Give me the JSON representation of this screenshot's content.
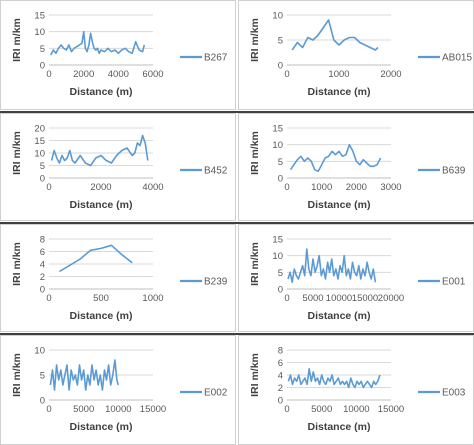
{
  "chart_data": [
    {
      "type": "line",
      "legend": "B267",
      "xlabel": "Distance (m)",
      "ylabel": "IRI m/km",
      "xlim": [
        0,
        6000
      ],
      "ylim": [
        0,
        15
      ],
      "xticks": [
        0,
        2000,
        4000,
        6000
      ],
      "yticks": [
        0,
        5,
        10,
        15
      ],
      "grid": true,
      "legend_position": "right",
      "series": [
        {
          "name": "B267",
          "x": [
            100,
            250,
            400,
            550,
            700,
            850,
            1000,
            1150,
            1300,
            1450,
            1600,
            1750,
            1900,
            2000,
            2100,
            2200,
            2300,
            2400,
            2500,
            2600,
            2700,
            2800,
            2900,
            3000,
            3200,
            3400,
            3600,
            3800,
            4000,
            4200,
            4400,
            4600,
            4800,
            5000,
            5200,
            5400,
            5500
          ],
          "y": [
            3,
            4.5,
            3.5,
            5,
            6,
            5,
            4.5,
            6,
            4,
            5,
            5.5,
            6,
            6.5,
            10,
            5,
            4,
            6,
            9.5,
            7,
            5,
            4.5,
            5,
            3.5,
            4.5,
            4,
            5,
            4,
            4.5,
            3.5,
            4.5,
            5,
            4,
            3.5,
            7,
            4.5,
            4,
            6
          ]
        }
      ]
    },
    {
      "type": "line",
      "legend": "AB015",
      "xlabel": "Distance (m)",
      "ylabel": "IRI m/km",
      "xlim": [
        0,
        2000
      ],
      "ylim": [
        0,
        10
      ],
      "xticks": [
        0,
        1000,
        2000
      ],
      "yticks": [
        0,
        5,
        10
      ],
      "grid": true,
      "legend_position": "right",
      "series": [
        {
          "name": "AB015",
          "x": [
            100,
            200,
            300,
            400,
            500,
            600,
            700,
            800,
            900,
            1000,
            1100,
            1200,
            1300,
            1400,
            1500,
            1600,
            1700,
            1750
          ],
          "y": [
            3,
            4.5,
            3.5,
            5.5,
            5,
            6,
            7.5,
            9,
            5,
            4,
            5,
            5.5,
            5.5,
            4.5,
            4,
            3.5,
            3,
            3.5
          ]
        }
      ]
    },
    {
      "type": "line",
      "legend": "B452",
      "xlabel": "Distance (m)",
      "ylabel": "IRI m/km",
      "xlim": [
        0,
        4000
      ],
      "ylim": [
        0,
        20
      ],
      "xticks": [
        0,
        2000,
        4000
      ],
      "yticks": [
        0,
        5,
        10,
        15,
        20
      ],
      "grid": true,
      "legend_position": "right",
      "series": [
        {
          "name": "B452",
          "x": [
            100,
            200,
            300,
            400,
            500,
            600,
            700,
            800,
            900,
            1000,
            1200,
            1400,
            1600,
            1800,
            2000,
            2200,
            2400,
            2600,
            2800,
            3000,
            3200,
            3300,
            3400,
            3500,
            3600,
            3700,
            3800
          ],
          "y": [
            7,
            11,
            8,
            6,
            9,
            7,
            8,
            11,
            7,
            6,
            9,
            6,
            5,
            8,
            9,
            7,
            6,
            9,
            11,
            12,
            9,
            10,
            14,
            13,
            17,
            14,
            7
          ]
        }
      ]
    },
    {
      "type": "line",
      "legend": "B639",
      "xlabel": "Distance (m)",
      "ylabel": "IRI m/km",
      "xlim": [
        0,
        3000
      ],
      "ylim": [
        0,
        15
      ],
      "xticks": [
        0,
        1000,
        2000,
        3000
      ],
      "yticks": [
        0,
        5,
        10,
        15
      ],
      "grid": true,
      "legend_position": "right",
      "series": [
        {
          "name": "B639",
          "x": [
            100,
            200,
            300,
            400,
            500,
            600,
            700,
            800,
            900,
            1000,
            1100,
            1200,
            1300,
            1400,
            1500,
            1600,
            1700,
            1800,
            1900,
            2000,
            2100,
            2200,
            2300,
            2400,
            2500,
            2600,
            2700
          ],
          "y": [
            2.5,
            4,
            5.5,
            6.5,
            5,
            6,
            5,
            2.5,
            2,
            4,
            6,
            6.5,
            8,
            7,
            8,
            6.5,
            7,
            10,
            8,
            5,
            4,
            5.5,
            4.5,
            3.5,
            3.5,
            4,
            6
          ]
        }
      ]
    },
    {
      "type": "line",
      "legend": "B239",
      "xlabel": "Distance (m)",
      "ylabel": "IRI m/km",
      "xlim": [
        0,
        1000
      ],
      "ylim": [
        0,
        8
      ],
      "xticks": [
        0,
        500,
        1000
      ],
      "yticks": [
        0,
        2,
        4,
        6,
        8
      ],
      "grid": true,
      "legend_position": "right",
      "series": [
        {
          "name": "B239",
          "x": [
            100,
            200,
            300,
            400,
            500,
            600,
            700,
            800
          ],
          "y": [
            2.8,
            3.8,
            4.8,
            6.2,
            6.5,
            7,
            5.5,
            4.2
          ]
        }
      ]
    },
    {
      "type": "line",
      "legend": "E001",
      "xlabel": "Distance (m)",
      "ylabel": "IRI m/km",
      "xlim": [
        0,
        20000
      ],
      "ylim": [
        0,
        15
      ],
      "xticks": [
        0,
        5000,
        10000,
        15000,
        20000
      ],
      "yticks": [
        0,
        5,
        10,
        15
      ],
      "grid": true,
      "legend_position": "right",
      "series": [
        {
          "name": "E001",
          "x": [
            200,
            600,
            1000,
            1400,
            1800,
            2200,
            2600,
            3000,
            3400,
            3800,
            4200,
            4600,
            5000,
            5400,
            5800,
            6200,
            6600,
            7000,
            7400,
            7800,
            8200,
            8600,
            9000,
            9400,
            9800,
            10200,
            10600,
            11000,
            11400,
            11800,
            12200,
            12600,
            13000,
            13400,
            13800,
            14200,
            14600,
            15000,
            15400,
            15800,
            16200,
            16600,
            17000
          ],
          "y": [
            3,
            5,
            2,
            6,
            4,
            3,
            5,
            7,
            4,
            12,
            6,
            4,
            9,
            5,
            7,
            10,
            4,
            6,
            3,
            8,
            5,
            9,
            4,
            6,
            3,
            7,
            5,
            10,
            4,
            6,
            3,
            8,
            5,
            4,
            7,
            3,
            6,
            4,
            8,
            5,
            3,
            6,
            2
          ]
        }
      ]
    },
    {
      "type": "line",
      "legend": "E002",
      "xlabel": "Distance (m)",
      "ylabel": "IRI m/km",
      "xlim": [
        0,
        15000
      ],
      "ylim": [
        0,
        10
      ],
      "xticks": [
        0,
        5000,
        10000,
        15000
      ],
      "yticks": [
        0,
        5,
        10
      ],
      "grid": true,
      "legend_position": "right",
      "series": [
        {
          "name": "E002",
          "x": [
            200,
            500,
            800,
            1100,
            1400,
            1700,
            2000,
            2300,
            2600,
            2900,
            3200,
            3500,
            3800,
            4100,
            4400,
            4700,
            5000,
            5300,
            5600,
            5900,
            6200,
            6500,
            6800,
            7100,
            7400,
            7700,
            8000,
            8300,
            8600,
            8900,
            9200,
            9500,
            9800,
            10000
          ],
          "y": [
            3,
            6,
            2,
            7,
            4,
            6,
            3,
            5,
            7,
            2,
            6,
            4,
            5,
            3,
            7,
            4,
            6,
            2,
            5,
            3,
            7,
            4,
            6,
            3,
            5,
            2,
            6,
            4,
            7,
            3,
            5,
            8,
            4,
            3
          ]
        }
      ]
    },
    {
      "type": "line",
      "legend": "E003",
      "xlabel": "Distance (m)",
      "ylabel": "IRI m/km",
      "xlim": [
        0,
        15000
      ],
      "ylim": [
        0,
        8
      ],
      "xticks": [
        0,
        5000,
        10000,
        15000
      ],
      "yticks": [
        0,
        2,
        4,
        6,
        8
      ],
      "grid": true,
      "legend_position": "right",
      "series": [
        {
          "name": "E003",
          "x": [
            200,
            500,
            800,
            1100,
            1400,
            1700,
            2000,
            2300,
            2600,
            2900,
            3200,
            3500,
            3800,
            4100,
            4400,
            4700,
            5000,
            5300,
            5600,
            5900,
            6200,
            6500,
            6800,
            7100,
            7400,
            7700,
            8000,
            8300,
            8600,
            8900,
            9200,
            9500,
            9800,
            10100,
            10400,
            10700,
            11000,
            11300,
            11600,
            11900,
            12200,
            12500,
            12800,
            13100,
            13400
          ],
          "y": [
            3,
            4,
            2.5,
            3.5,
            3,
            4,
            2.5,
            3,
            3.5,
            2.5,
            5,
            3,
            4.5,
            3,
            3.5,
            2.5,
            4,
            3,
            2.5,
            3.5,
            3,
            4,
            2.5,
            3,
            3.5,
            2.5,
            3,
            2.5,
            3,
            2,
            3.5,
            2.5,
            2,
            3,
            2.5,
            3,
            2,
            2.5,
            3,
            2.5,
            2,
            3,
            2.5,
            3,
            4
          ]
        }
      ]
    }
  ],
  "style": {
    "line_color": "#5b9bd5",
    "grid_color": "#d9d9d9",
    "border_color": "#d0d0d0",
    "separator_color": "#404040"
  }
}
